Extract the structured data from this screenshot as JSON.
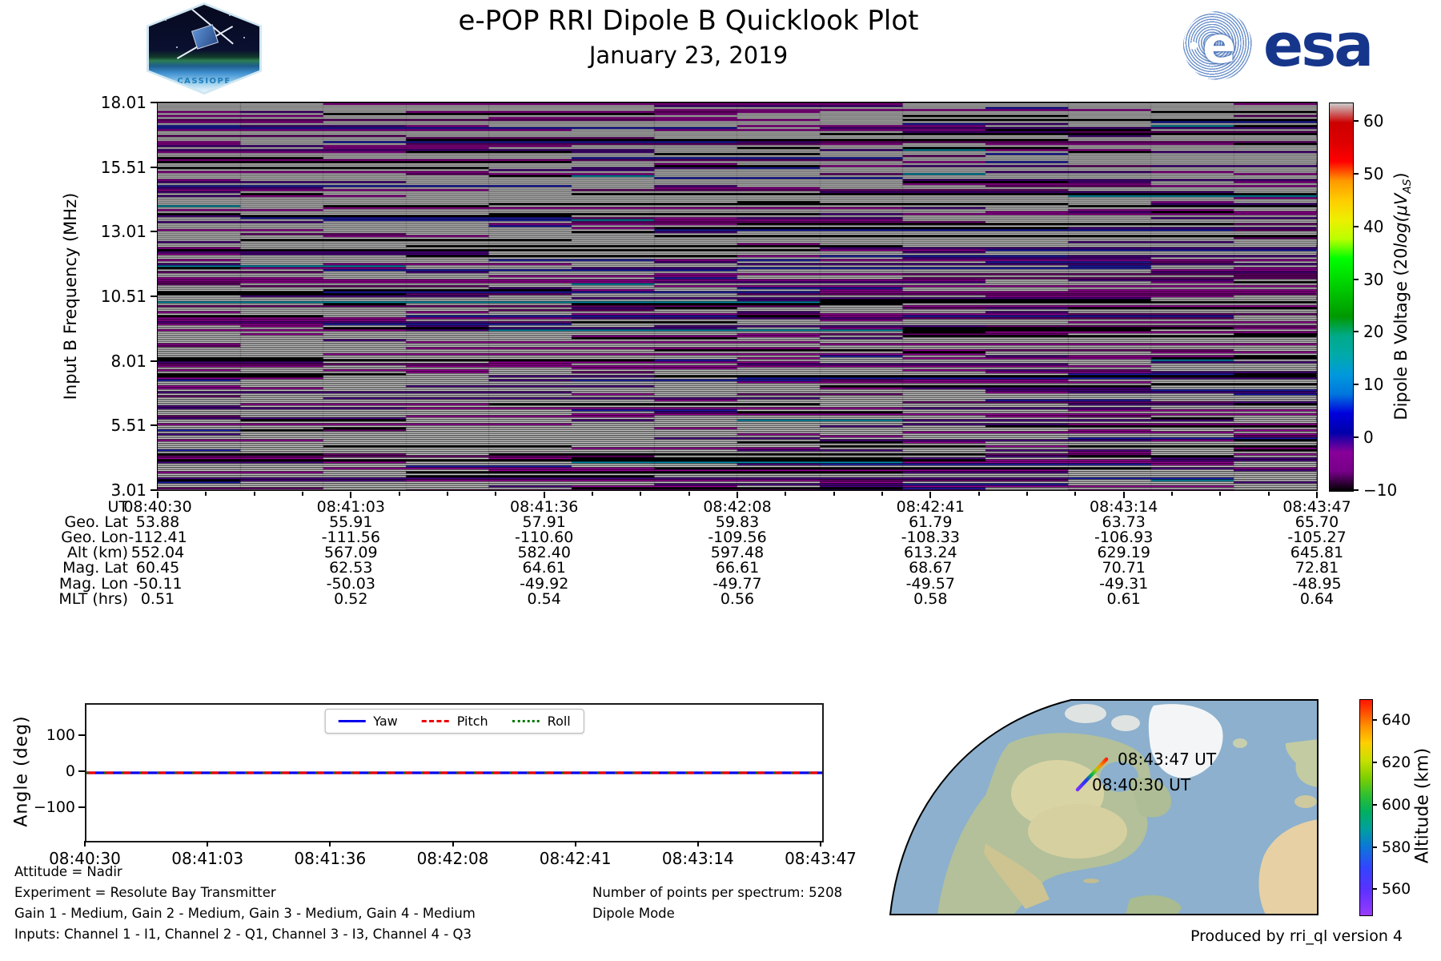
{
  "header": {
    "title": "e-POP RRI Dipole B Quicklook Plot",
    "subtitle": "January 23, 2019",
    "cassiope_logo_text": "CASSIOPE",
    "esa_logo_e": "e",
    "esa_logo_text": "esa"
  },
  "chart_data": [
    {
      "id": "spectrogram",
      "type": "heatmap",
      "ylabel": "Input B Frequency (MHz)",
      "ylim": [
        3.01,
        18.01
      ],
      "y_ticks": [
        "18.01",
        "15.51",
        "13.01",
        "10.51",
        "8.01",
        "5.51",
        "3.01"
      ],
      "x_ticks": [
        "08:40:30",
        "08:41:03",
        "08:41:36",
        "08:42:08",
        "08:42:41",
        "08:43:14",
        "08:43:47"
      ],
      "grid": false,
      "colorbar": {
        "label_parts": {
          "upright": "Dipole B Voltage (20",
          "italic": "log(μV",
          "sub": "AS",
          "close": ")"
        },
        "colormap": "nipy_spectral",
        "range": [
          -10,
          63.5
        ],
        "ticks": [
          {
            "label": "60",
            "value": 60
          },
          {
            "label": "50",
            "value": 50
          },
          {
            "label": "40",
            "value": 40
          },
          {
            "label": "30",
            "value": 30
          },
          {
            "label": "20",
            "value": 20
          },
          {
            "label": "10",
            "value": 10
          },
          {
            "label": "0",
            "value": 0
          },
          {
            "label": "−10",
            "value": -10
          }
        ]
      },
      "pattern": {
        "description": "dense horizontal stripe texture (pulsed transmitter spectra), procedural approximation",
        "seed": 1337,
        "row_step": 2.5,
        "line_height": 1.35,
        "segment_width": 103.4,
        "persistence": 0.58,
        "palette": [
          {
            "color": "#ffffff",
            "w": 0.5
          },
          {
            "color": "#c400c4",
            "w": 0.155
          },
          {
            "color": "#6000aa",
            "w": 0.115
          },
          {
            "color": "#8a0090",
            "w": 0.075
          },
          {
            "color": "#000000",
            "w": 0.08
          },
          {
            "color": "#2525e0",
            "w": 0.05
          },
          {
            "color": "#00b8dc",
            "w": 0.012
          }
        ]
      }
    },
    {
      "id": "angles",
      "type": "line",
      "ylabel": "Angle (deg)",
      "ylim": [
        -190,
        190
      ],
      "y_ticks": [
        {
          "label": "100",
          "value": 100
        },
        {
          "label": "0",
          "value": 0
        },
        {
          "label": "−100",
          "value": -100
        }
      ],
      "x_ticks": [
        "08:40:30",
        "08:41:03",
        "08:41:36",
        "08:42:08",
        "08:42:41",
        "08:43:14",
        "08:43:47"
      ],
      "legend_position": "upper center",
      "series": [
        {
          "name": "Yaw",
          "color": "#0000ee",
          "style": "solid",
          "values": [
            0,
            0,
            0,
            0,
            0,
            0,
            0
          ]
        },
        {
          "name": "Pitch",
          "color": "#ee0000",
          "style": "dashed",
          "values": [
            0,
            0,
            0,
            0,
            0,
            0,
            0
          ]
        },
        {
          "name": "Roll",
          "color": "#007700",
          "style": "dotted",
          "values": [
            0,
            0,
            0,
            0,
            0,
            0,
            0
          ]
        }
      ]
    },
    {
      "id": "ground-track-map",
      "type": "map",
      "region": "North America / North Atlantic",
      "track_labels": [
        {
          "text": "08:43:47 UT"
        },
        {
          "text": "08:40:30 UT"
        }
      ],
      "colorbar": {
        "label": "Altitude (km)",
        "colormap": "rainbow",
        "range": [
          548,
          650
        ],
        "ticks": [
          {
            "label": "640",
            "value": 640
          },
          {
            "label": "620",
            "value": 620
          },
          {
            "label": "600",
            "value": 600
          },
          {
            "label": "580",
            "value": 580
          },
          {
            "label": "560",
            "value": 560
          }
        ]
      }
    }
  ],
  "metadata_table": {
    "rows": [
      {
        "label": "UT",
        "values": [
          "08:40:30",
          "08:41:03",
          "08:41:36",
          "08:42:08",
          "08:42:41",
          "08:43:14",
          "08:43:47"
        ]
      },
      {
        "label": "Geo. Lat",
        "values": [
          "53.88",
          "55.91",
          "57.91",
          "59.83",
          "61.79",
          "63.73",
          "65.70"
        ]
      },
      {
        "label": "Geo. Lon",
        "values": [
          "-112.41",
          "-111.56",
          "-110.60",
          "-109.56",
          "-108.33",
          "-106.93",
          "-105.27"
        ]
      },
      {
        "label": "Alt (km)",
        "values": [
          "552.04",
          "567.09",
          "582.40",
          "597.48",
          "613.24",
          "629.19",
          "645.81"
        ]
      },
      {
        "label": "Mag. Lat",
        "values": [
          "60.45",
          "62.53",
          "64.61",
          "66.61",
          "68.67",
          "70.71",
          "72.81"
        ]
      },
      {
        "label": "Mag. Lon",
        "values": [
          "-50.11",
          "-50.03",
          "-49.92",
          "-49.77",
          "-49.57",
          "-49.31",
          "-48.95"
        ]
      },
      {
        "label": "MLT (hrs)",
        "values": [
          "0.51",
          "0.52",
          "0.54",
          "0.56",
          "0.58",
          "0.61",
          "0.64"
        ]
      }
    ]
  },
  "annotations": {
    "left": [
      "Attitude = Nadir",
      "Experiment = Resolute Bay Transmitter",
      "Gain 1 - Medium, Gain 2 - Medium, Gain 3 - Medium, Gain 4 - Medium",
      "Inputs: Channel 1 - I1, Channel 2 - Q1, Channel 3 - I3, Channel 4 - Q3"
    ],
    "right": [
      "Number of points per spectrum: 5208",
      "Dipole Mode"
    ],
    "produced_by": "Produced by rri_ql version 4"
  }
}
